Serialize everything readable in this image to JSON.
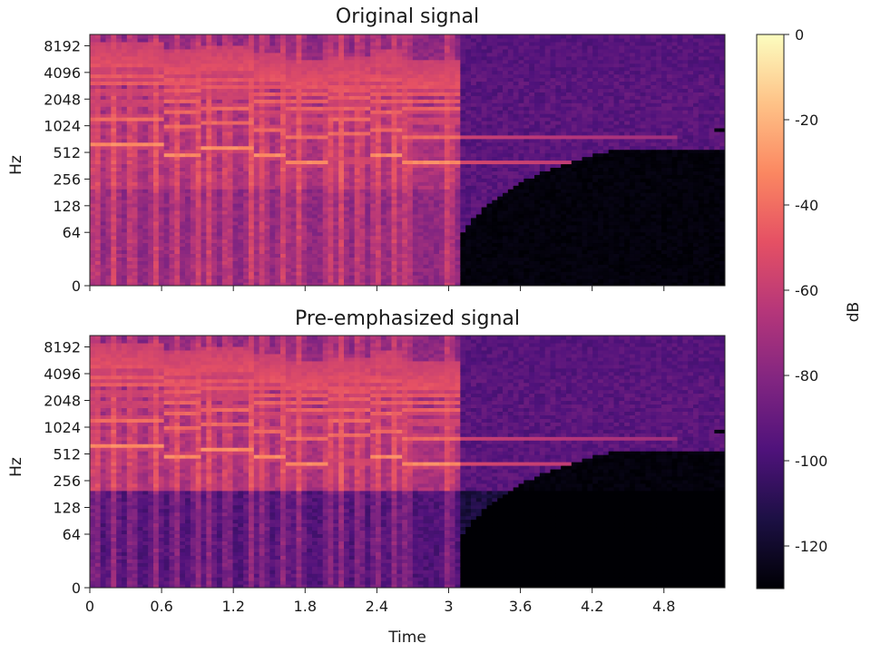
{
  "chart_data": [
    {
      "type": "heatmap",
      "title": "Original signal",
      "ylabel": "Hz",
      "xlabel": "",
      "y_scale": "log2",
      "xlim": [
        0,
        5.31
      ],
      "x_ticks": [
        0,
        0.6,
        1.2,
        1.8,
        2.4,
        3,
        3.6,
        4.2,
        4.8
      ],
      "x_tick_labels_shown": false,
      "y_ticks": [
        0,
        64,
        128,
        256,
        512,
        1024,
        2048,
        4096,
        8192
      ],
      "y_tick_labels": [
        "0",
        "64",
        "128",
        "256",
        "512",
        "1024",
        "2048",
        "4096",
        "8192"
      ],
      "clim": [
        -130,
        0
      ],
      "note_tracks_hz": [
        {
          "t_start": 0.0,
          "t_end": 0.6,
          "hz": 620
        },
        {
          "t_start": 0.6,
          "t_end": 0.95,
          "hz": 500
        },
        {
          "t_start": 0.95,
          "t_end": 1.35,
          "hz": 560
        },
        {
          "t_start": 1.35,
          "t_end": 1.62,
          "hz": 470
        },
        {
          "t_start": 1.62,
          "t_end": 2.0,
          "hz": 390
        },
        {
          "t_start": 2.0,
          "t_end": 2.35,
          "hz": 420
        },
        {
          "t_start": 2.35,
          "t_end": 2.6,
          "hz": 480
        },
        {
          "t_start": 2.6,
          "t_end": 3.1,
          "hz": 390
        },
        {
          "t_start": 3.1,
          "t_end": 4.9,
          "hz": 390
        }
      ]
    },
    {
      "type": "heatmap",
      "title": "Pre-emphasized signal",
      "ylabel": "Hz",
      "xlabel": "Time",
      "y_scale": "log2",
      "xlim": [
        0,
        5.31
      ],
      "x_ticks": [
        0,
        0.6,
        1.2,
        1.8,
        2.4,
        3,
        3.6,
        4.2,
        4.8
      ],
      "x_tick_labels": [
        "0",
        "0.6",
        "1.2",
        "1.8",
        "2.4",
        "3",
        "3.6",
        "4.2",
        "4.8"
      ],
      "y_ticks": [
        0,
        64,
        128,
        256,
        512,
        1024,
        2048,
        4096,
        8192
      ],
      "y_tick_labels": [
        "0",
        "64",
        "128",
        "256",
        "512",
        "1024",
        "2048",
        "4096",
        "8192"
      ],
      "clim": [
        -130,
        0
      ],
      "note_tracks_hz": [
        {
          "t_start": 0.0,
          "t_end": 0.6,
          "hz": 620
        },
        {
          "t_start": 0.6,
          "t_end": 0.95,
          "hz": 500
        },
        {
          "t_start": 0.95,
          "t_end": 1.35,
          "hz": 560
        },
        {
          "t_start": 1.35,
          "t_end": 1.62,
          "hz": 470
        },
        {
          "t_start": 1.62,
          "t_end": 2.0,
          "hz": 390
        },
        {
          "t_start": 2.0,
          "t_end": 2.35,
          "hz": 420
        },
        {
          "t_start": 2.35,
          "t_end": 2.6,
          "hz": 480
        },
        {
          "t_start": 2.6,
          "t_end": 3.1,
          "hz": 390
        },
        {
          "t_start": 3.1,
          "t_end": 4.9,
          "hz": 390
        }
      ]
    }
  ],
  "colorbar": {
    "label": "dB",
    "ticks": [
      0,
      -20,
      -40,
      -60,
      -80,
      -100,
      -120
    ],
    "tick_labels": [
      "0",
      "-20",
      "-40",
      "-60",
      "-80",
      "-100",
      "-120"
    ],
    "range": [
      -130,
      0
    ],
    "colormap": "magma",
    "colormap_stops": [
      "#000004",
      "#1c1044",
      "#4f127b",
      "#812581",
      "#b5367a",
      "#e55064",
      "#fb8761",
      "#fec287",
      "#fcfdbf"
    ]
  }
}
